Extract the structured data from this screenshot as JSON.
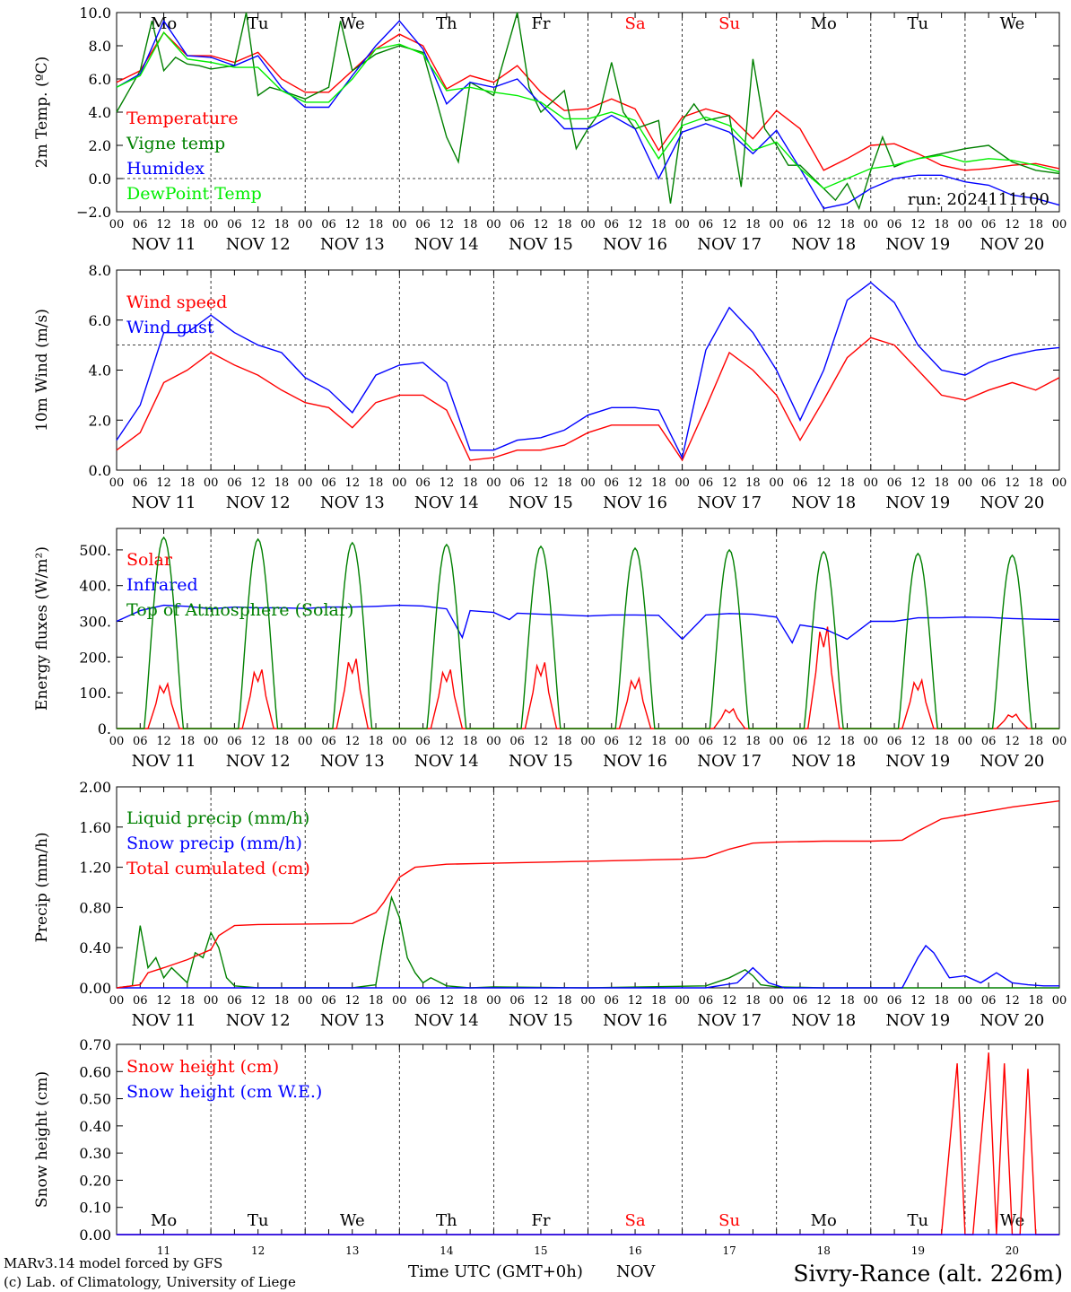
{
  "title": "Sivry-Rance (alt. 226m)",
  "run_label": "run: 2024111100",
  "footer": {
    "credit_line1": "MARv3.14 model forced by GFS",
    "credit_line2": "(c) Lab. of Climatology, University of Liege",
    "xlabel": "Time UTC (GMT+0h)",
    "month": "NOV"
  },
  "colors": {
    "red": "#ff0000",
    "green": "#008000",
    "blue": "#0000ff",
    "light_green": "#00ee00",
    "weekend": "#ff0000"
  },
  "days": [
    "NOV 11",
    "NOV 12",
    "NOV 13",
    "NOV 14",
    "NOV 15",
    "NOV 16",
    "NOV 17",
    "NOV 18",
    "NOV 19",
    "NOV 20"
  ],
  "day_numbers": [
    "11",
    "12",
    "13",
    "14",
    "15",
    "16",
    "17",
    "18",
    "19",
    "20"
  ],
  "weekdays": [
    "Mo",
    "Tu",
    "We",
    "Th",
    "Fr",
    "Sa",
    "Su",
    "Mo",
    "Tu",
    "We"
  ],
  "weekend_days": [
    "Sa",
    "Su"
  ],
  "hour_ticks": [
    "00",
    "06",
    "12",
    "18"
  ],
  "chart_data": [
    {
      "type": "line",
      "ylabel": "2m Temp. (ºC)",
      "x_unit": "hours since NOV 11 00 UTC",
      "ylim": [
        -2,
        10
      ],
      "yticks": [
        "10.0",
        "8.0",
        "6.0",
        "4.0",
        "2.0",
        "0.0",
        "−2.0"
      ],
      "ytick_values": [
        10,
        8,
        6,
        4,
        2,
        0,
        -2
      ],
      "ref_line": 0,
      "legend": "top-left",
      "series": [
        {
          "name": "Temperature",
          "color": "#ff0000",
          "x": [
            0,
            6,
            12,
            18,
            24,
            30,
            36,
            42,
            48,
            54,
            60,
            66,
            72,
            78,
            84,
            90,
            96,
            102,
            108,
            114,
            120,
            126,
            132,
            138,
            144,
            150,
            156,
            162,
            168,
            174,
            180,
            186,
            192,
            198,
            204,
            210,
            216,
            222,
            228,
            234,
            240
          ],
          "y": [
            5.8,
            6.5,
            8.8,
            7.4,
            7.4,
            7.0,
            7.6,
            6.0,
            5.2,
            5.2,
            6.5,
            7.8,
            8.7,
            8.0,
            5.4,
            6.2,
            5.8,
            6.8,
            5.2,
            4.1,
            4.2,
            4.8,
            4.2,
            1.7,
            3.7,
            4.2,
            3.8,
            2.4,
            4.1,
            3.0,
            0.5,
            1.2,
            2.0,
            2.1,
            1.5,
            0.8,
            0.5,
            0.6,
            0.8,
            0.9,
            0.6
          ]
        },
        {
          "name": "Vigne temp",
          "color": "#008000",
          "x": [
            0,
            6,
            9,
            12,
            15,
            18,
            21,
            24,
            30,
            33,
            36,
            39,
            42,
            48,
            54,
            57,
            60,
            66,
            72,
            78,
            84,
            87,
            90,
            96,
            99,
            102,
            105,
            108,
            114,
            117,
            120,
            123,
            126,
            129,
            132,
            138,
            141,
            144,
            147,
            150,
            156,
            159,
            162,
            165,
            168,
            171,
            174,
            180,
            183,
            186,
            189,
            192,
            195,
            198,
            201,
            204,
            210,
            216,
            222,
            228,
            234,
            240
          ],
          "y": [
            4.0,
            6.5,
            9.5,
            6.5,
            7.3,
            6.9,
            6.8,
            6.6,
            6.8,
            10.0,
            5.0,
            5.5,
            5.3,
            4.8,
            5.5,
            9.5,
            6.5,
            7.5,
            8.0,
            7.6,
            2.5,
            1.0,
            5.8,
            5.0,
            7.5,
            10.0,
            5.5,
            4.0,
            5.3,
            1.8,
            3.0,
            4.0,
            7.0,
            4.0,
            3.0,
            3.5,
            -1.5,
            3.5,
            4.5,
            3.5,
            3.8,
            -0.5,
            7.2,
            3.0,
            2.0,
            0.8,
            0.8,
            -0.6,
            -1.3,
            -0.3,
            -1.8,
            0.5,
            2.5,
            0.7,
            1.0,
            1.2,
            1.5,
            1.8,
            2.0,
            1.0,
            0.5,
            0.3
          ]
        },
        {
          "name": "Humidex",
          "color": "#0000ff",
          "x": [
            0,
            6,
            12,
            18,
            24,
            30,
            36,
            42,
            48,
            54,
            60,
            66,
            72,
            78,
            84,
            90,
            96,
            102,
            108,
            114,
            120,
            126,
            132,
            138,
            144,
            150,
            156,
            162,
            168,
            174,
            180,
            186,
            192,
            198,
            204,
            210,
            216,
            222,
            228,
            234,
            240
          ],
          "y": [
            5.5,
            6.3,
            9.5,
            7.4,
            7.3,
            6.8,
            7.4,
            5.5,
            4.3,
            4.3,
            6.2,
            8.0,
            9.5,
            7.8,
            4.5,
            5.8,
            5.5,
            6.0,
            4.5,
            3.0,
            3.0,
            3.8,
            3.0,
            0.0,
            2.8,
            3.3,
            2.8,
            1.5,
            2.9,
            0.6,
            -1.8,
            -1.5,
            -0.6,
            0.0,
            0.2,
            0.2,
            -0.2,
            -0.4,
            -1.0,
            -1.2,
            -1.6
          ]
        },
        {
          "name": "DewPoint Temp",
          "color": "#00ee00",
          "x": [
            0,
            6,
            12,
            18,
            24,
            30,
            36,
            42,
            48,
            54,
            60,
            66,
            72,
            78,
            84,
            90,
            96,
            102,
            108,
            114,
            120,
            126,
            132,
            138,
            144,
            150,
            156,
            162,
            168,
            174,
            180,
            186,
            192,
            198,
            204,
            210,
            216,
            222,
            228,
            234,
            240
          ],
          "y": [
            5.5,
            6.2,
            8.8,
            7.2,
            7.0,
            6.7,
            6.7,
            5.3,
            4.6,
            4.6,
            6.0,
            7.8,
            8.1,
            7.5,
            5.3,
            5.5,
            5.2,
            5.0,
            4.6,
            3.6,
            3.6,
            4.0,
            3.5,
            1.2,
            3.2,
            3.7,
            3.2,
            1.7,
            2.2,
            0.6,
            -0.6,
            0.0,
            0.6,
            0.8,
            1.2,
            1.4,
            1.0,
            1.2,
            1.1,
            0.8,
            0.4
          ]
        }
      ]
    },
    {
      "type": "line",
      "ylabel": "10m Wind (m/s)",
      "x_unit": "hours since NOV 11 00 UTC",
      "ylim": [
        0,
        8
      ],
      "yticks": [
        "8.0",
        "6.0",
        "4.0",
        "2.0",
        "0.0"
      ],
      "ytick_values": [
        8,
        6,
        4,
        2,
        0
      ],
      "ref_line": 5,
      "legend": "top-left",
      "series": [
        {
          "name": "Wind speed",
          "color": "#ff0000",
          "x": [
            0,
            6,
            12,
            18,
            24,
            30,
            36,
            42,
            48,
            54,
            60,
            66,
            72,
            78,
            84,
            90,
            96,
            102,
            108,
            114,
            120,
            126,
            132,
            138,
            144,
            150,
            156,
            162,
            168,
            174,
            180,
            186,
            192,
            198,
            204,
            210,
            216,
            222,
            228,
            234,
            240
          ],
          "y": [
            0.8,
            1.5,
            3.5,
            4.0,
            4.7,
            4.2,
            3.8,
            3.2,
            2.7,
            2.5,
            1.7,
            2.7,
            3.0,
            3.0,
            2.4,
            0.4,
            0.5,
            0.8,
            0.8,
            1.0,
            1.5,
            1.8,
            1.8,
            1.8,
            0.4,
            2.5,
            4.7,
            4.0,
            3.0,
            1.2,
            2.8,
            4.5,
            5.3,
            5.0,
            4.0,
            3.0,
            2.8,
            3.2,
            3.5,
            3.2,
            3.7
          ]
        },
        {
          "name": "Wind gust",
          "color": "#0000ff",
          "x": [
            0,
            6,
            12,
            18,
            24,
            30,
            36,
            42,
            48,
            54,
            60,
            66,
            72,
            78,
            84,
            90,
            96,
            102,
            108,
            114,
            120,
            126,
            132,
            138,
            144,
            150,
            156,
            162,
            168,
            174,
            180,
            186,
            192,
            198,
            204,
            210,
            216,
            222,
            228,
            234,
            240
          ],
          "y": [
            1.2,
            2.6,
            5.5,
            5.5,
            6.2,
            5.5,
            5.0,
            4.7,
            3.7,
            3.2,
            2.3,
            3.8,
            4.2,
            4.3,
            3.5,
            0.8,
            0.8,
            1.2,
            1.3,
            1.6,
            2.2,
            2.5,
            2.5,
            2.4,
            0.5,
            4.8,
            6.5,
            5.5,
            4.0,
            2.0,
            4.0,
            6.8,
            7.5,
            6.7,
            5.0,
            4.0,
            3.8,
            4.3,
            4.6,
            4.8,
            4.9
          ]
        }
      ]
    },
    {
      "type": "line",
      "ylabel": "Energy fluxes (W/m²)",
      "x_unit": "hours since NOV 11 00 UTC",
      "ylim": [
        0,
        560
      ],
      "yticks": [
        "500.",
        "400.",
        "300.",
        "200.",
        "100.",
        "0."
      ],
      "ytick_values": [
        500,
        400,
        300,
        200,
        100,
        0
      ],
      "legend": "top-left",
      "series": [
        {
          "name": "Solar",
          "color": "#ff0000",
          "daily_peak_W_m2": [
            125,
            165,
            195,
            165,
            185,
            140,
            55,
            285,
            135,
            40
          ]
        },
        {
          "name": "Infrared",
          "color": "#0000ff",
          "x": [
            0,
            6,
            12,
            18,
            24,
            30,
            36,
            42,
            48,
            54,
            60,
            66,
            72,
            78,
            84,
            88,
            90,
            96,
            100,
            102,
            108,
            114,
            120,
            126,
            132,
            138,
            144,
            150,
            156,
            162,
            168,
            172,
            174,
            180,
            186,
            192,
            198,
            204,
            210,
            216,
            222,
            228,
            234,
            240
          ],
          "y": [
            300,
            330,
            345,
            342,
            335,
            340,
            338,
            338,
            336,
            340,
            340,
            342,
            345,
            343,
            335,
            255,
            330,
            325,
            305,
            323,
            320,
            318,
            315,
            318,
            318,
            317,
            250,
            318,
            322,
            320,
            312,
            240,
            290,
            280,
            250,
            300,
            300,
            310,
            310,
            312,
            311,
            308,
            306,
            305
          ]
        },
        {
          "name": "Top of Atmosphere (Solar)",
          "color": "#008000",
          "daily_peak_W_m2": [
            535,
            530,
            520,
            515,
            510,
            505,
            500,
            495,
            490,
            485
          ]
        }
      ]
    },
    {
      "type": "line",
      "ylabel": "Precip (mm/h)",
      "x_unit": "hours since NOV 11 00 UTC",
      "ylim": [
        0,
        2
      ],
      "yticks": [
        "2.00",
        "1.60",
        "1.20",
        "0.80",
        "0.40",
        "0.00"
      ],
      "ytick_values": [
        2.0,
        1.6,
        1.2,
        0.8,
        0.4,
        0.0
      ],
      "legend": "top-left",
      "series": [
        {
          "name": "Liquid precip (mm/h)",
          "color": "#008000",
          "x": [
            0,
            4,
            6,
            8,
            10,
            12,
            14,
            18,
            20,
            22,
            24,
            26,
            28,
            30,
            36,
            42,
            48,
            54,
            60,
            66,
            68,
            70,
            72,
            74,
            76,
            78,
            80,
            84,
            90,
            96,
            120,
            150,
            156,
            160,
            162,
            164,
            168,
            180,
            192,
            204,
            216,
            240
          ],
          "y": [
            0,
            0.02,
            0.62,
            0.2,
            0.3,
            0.1,
            0.2,
            0.05,
            0.35,
            0.3,
            0.55,
            0.4,
            0.1,
            0.02,
            0.0,
            0.0,
            0.0,
            0.0,
            0.0,
            0.03,
            0.5,
            0.9,
            0.7,
            0.3,
            0.15,
            0.05,
            0.1,
            0.02,
            0.0,
            0.01,
            0.0,
            0.02,
            0.1,
            0.18,
            0.12,
            0.03,
            0.01,
            0.0,
            0.0,
            0.0,
            0.0,
            0.0
          ]
        },
        {
          "name": "Snow precip (mm/h)",
          "color": "#0000ff",
          "x": [
            0,
            150,
            158,
            162,
            166,
            170,
            180,
            200,
            204,
            206,
            208,
            212,
            216,
            220,
            224,
            228,
            232,
            236,
            240
          ],
          "y": [
            0,
            0,
            0.05,
            0.2,
            0.05,
            0.0,
            0.0,
            0.0,
            0.3,
            0.42,
            0.35,
            0.1,
            0.12,
            0.05,
            0.15,
            0.05,
            0.03,
            0.02,
            0.02
          ]
        },
        {
          "name": "Total cumulated (cm)",
          "color": "#ff0000",
          "x": [
            0,
            6,
            8,
            12,
            18,
            24,
            26,
            30,
            36,
            48,
            60,
            66,
            68,
            72,
            76,
            84,
            96,
            120,
            144,
            150,
            156,
            162,
            168,
            180,
            192,
            200,
            204,
            210,
            216,
            228,
            240
          ],
          "y": [
            0,
            0.03,
            0.15,
            0.2,
            0.28,
            0.38,
            0.52,
            0.62,
            0.63,
            0.635,
            0.64,
            0.75,
            0.85,
            1.1,
            1.2,
            1.23,
            1.24,
            1.26,
            1.28,
            1.3,
            1.38,
            1.44,
            1.45,
            1.46,
            1.46,
            1.47,
            1.56,
            1.68,
            1.72,
            1.8,
            1.86
          ]
        }
      ]
    },
    {
      "type": "line",
      "ylabel": "Snow height (cm)",
      "x_unit": "hours since NOV 11 00 UTC",
      "ylim": [
        0,
        0.7
      ],
      "yticks": [
        "0.70",
        "0.60",
        "0.50",
        "0.40",
        "0.30",
        "0.20",
        "0.10",
        "0.00"
      ],
      "ytick_values": [
        0.7,
        0.6,
        0.5,
        0.4,
        0.3,
        0.2,
        0.1,
        0.0
      ],
      "legend": "top-left",
      "series": [
        {
          "name": "Snow height (cm)",
          "color": "#ff0000",
          "x": [
            0,
            210,
            214,
            216,
            218,
            222,
            224,
            226,
            228,
            230,
            232,
            234,
            236,
            238,
            240
          ],
          "y": [
            0,
            0,
            0.63,
            0,
            0,
            0.67,
            0,
            0.63,
            0,
            0,
            0.61,
            0,
            0,
            0,
            0
          ]
        },
        {
          "name": "Snow height (cm W.E.)",
          "color": "#0000ff",
          "x": [
            0,
            240
          ],
          "y": [
            0,
            0
          ]
        }
      ]
    }
  ]
}
